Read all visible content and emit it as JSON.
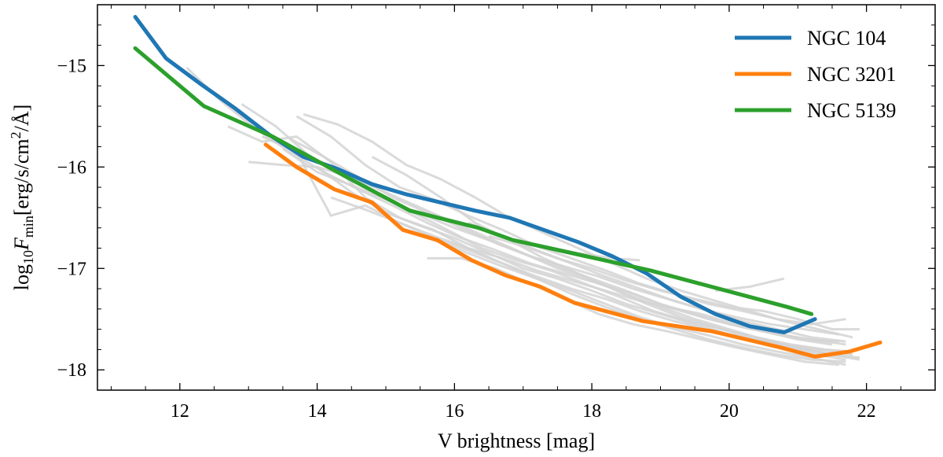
{
  "chart_data": {
    "type": "line",
    "title": "",
    "xlabel": "V brightness [mag]",
    "ylabel": {
      "pre": "log",
      "sub1": "10",
      "F": "F",
      "sub2": "min",
      "post": "[erg/s/cm",
      "sup": "2",
      "end": "/Å]"
    },
    "xlim": [
      10.8,
      23.0
    ],
    "ylim": [
      -18.2,
      -14.4
    ],
    "x_ticks": [
      12,
      14,
      16,
      18,
      20,
      22
    ],
    "x_tick_labels": [
      "12",
      "14",
      "16",
      "18",
      "20",
      "22"
    ],
    "y_ticks": [
      -15,
      -16,
      -17,
      -18
    ],
    "y_tick_labels": [
      "−15",
      "−16",
      "−17",
      "−18"
    ],
    "legend_position": "top-right",
    "series": [
      {
        "name": "NGC 104",
        "color": "#1f77b4",
        "x": [
          11.35,
          11.8,
          12.3,
          12.8,
          13.3,
          13.8,
          14.3,
          14.8,
          15.3,
          15.8,
          16.3,
          16.8,
          17.3,
          17.8,
          18.3,
          18.8,
          19.3,
          19.8,
          20.3,
          20.8,
          21.25
        ],
        "y": [
          -14.52,
          -14.93,
          -15.18,
          -15.42,
          -15.68,
          -15.9,
          -16.02,
          -16.17,
          -16.27,
          -16.35,
          -16.43,
          -16.5,
          -16.62,
          -16.74,
          -16.88,
          -17.05,
          -17.28,
          -17.45,
          -17.57,
          -17.63,
          -17.5
        ]
      },
      {
        "name": "NGC 3201",
        "color": "#ff7f0e",
        "x": [
          13.25,
          13.7,
          14.25,
          14.8,
          15.25,
          15.75,
          16.25,
          16.75,
          17.25,
          17.75,
          18.25,
          18.75,
          19.25,
          19.75,
          20.25,
          20.75,
          21.25,
          21.75,
          22.2
        ],
        "y": [
          -15.78,
          -16.0,
          -16.22,
          -16.35,
          -16.62,
          -16.72,
          -16.92,
          -17.07,
          -17.18,
          -17.34,
          -17.43,
          -17.52,
          -17.57,
          -17.62,
          -17.7,
          -17.78,
          -17.87,
          -17.82,
          -17.73
        ]
      },
      {
        "name": "NGC 5139",
        "color": "#2ca02c",
        "x": [
          11.35,
          12.35,
          13.35,
          14.35,
          15.35,
          16.35,
          16.85,
          17.85,
          18.85,
          19.85,
          20.85,
          21.2
        ],
        "y": [
          -14.83,
          -15.4,
          -15.7,
          -16.07,
          -16.43,
          -16.6,
          -16.72,
          -16.87,
          -17.02,
          -17.2,
          -17.38,
          -17.45
        ]
      }
    ],
    "background_series_color": "#d3d3d3",
    "background_series": [
      {
        "x": [
          12.1,
          12.6,
          13.1,
          13.6,
          14.1,
          14.6,
          15.1,
          15.6,
          16.1,
          16.6,
          17.1,
          17.6,
          18.1,
          18.6,
          19.1,
          19.6,
          20.1,
          20.6,
          21.1,
          21.6
        ],
        "y": [
          -15.02,
          -15.35,
          -15.62,
          -15.85,
          -16.05,
          -16.22,
          -16.38,
          -16.55,
          -16.7,
          -16.82,
          -16.95,
          -17.05,
          -17.15,
          -17.25,
          -17.38,
          -17.45,
          -17.55,
          -17.62,
          -17.7,
          -17.72
        ]
      },
      {
        "x": [
          12.7,
          13.2,
          13.7,
          14.2,
          14.7,
          15.2,
          15.7,
          16.2,
          16.7,
          17.2,
          17.7,
          18.2,
          18.7,
          19.2,
          19.7,
          20.2,
          20.7,
          21.2,
          21.7
        ],
        "y": [
          -15.6,
          -15.75,
          -15.7,
          -15.95,
          -16.3,
          -16.5,
          -16.62,
          -16.8,
          -16.9,
          -17.02,
          -17.12,
          -17.22,
          -17.32,
          -17.4,
          -17.5,
          -17.58,
          -17.65,
          -17.7,
          -17.75
        ]
      },
      {
        "x": [
          12.9,
          13.4,
          13.9,
          14.4,
          14.9,
          15.4,
          15.9,
          16.4,
          16.9,
          17.4,
          17.9,
          18.4,
          18.9,
          19.4,
          19.9,
          20.4,
          20.9,
          21.4,
          21.8
        ],
        "y": [
          -15.38,
          -15.6,
          -15.9,
          -16.1,
          -16.28,
          -16.45,
          -16.62,
          -16.8,
          -16.92,
          -17.02,
          -17.15,
          -17.28,
          -17.42,
          -17.52,
          -17.6,
          -17.68,
          -17.75,
          -17.8,
          -17.82
        ]
      },
      {
        "x": [
          13.0,
          13.5,
          14.0,
          14.5,
          15.0,
          15.5,
          16.0,
          16.5,
          17.0,
          17.5,
          18.0,
          18.5,
          19.0,
          19.5,
          20.0,
          20.5,
          21.0,
          21.5
        ],
        "y": [
          -15.95,
          -15.98,
          -16.0,
          -16.25,
          -16.45,
          -16.58,
          -16.7,
          -16.85,
          -17.0,
          -17.1,
          -17.22,
          -17.35,
          -17.45,
          -17.55,
          -17.65,
          -17.72,
          -17.78,
          -17.85
        ]
      },
      {
        "x": [
          13.2,
          13.7,
          14.2,
          14.7,
          15.2,
          15.7,
          16.2,
          16.7,
          17.2,
          17.7,
          18.2,
          18.7,
          19.2,
          19.7,
          20.2,
          20.7,
          21.2,
          21.7
        ],
        "y": [
          -15.7,
          -15.85,
          -16.48,
          -16.38,
          -16.55,
          -16.7,
          -16.82,
          -16.95,
          -17.08,
          -17.2,
          -17.3,
          -17.42,
          -17.52,
          -17.6,
          -17.68,
          -17.76,
          -17.84,
          -17.9
        ]
      },
      {
        "x": [
          13.5,
          14.0,
          14.5,
          15.0,
          15.5,
          16.0,
          16.5,
          17.0,
          17.5,
          18.0,
          18.5,
          19.0,
          19.5,
          20.0,
          20.5,
          21.0,
          21.5
        ],
        "y": [
          -15.82,
          -16.05,
          -16.18,
          -16.32,
          -16.46,
          -16.6,
          -16.72,
          -16.85,
          -16.98,
          -17.1,
          -17.22,
          -17.35,
          -17.45,
          -17.55,
          -17.62,
          -17.7,
          -17.75
        ]
      },
      {
        "x": [
          13.6,
          14.1,
          14.6,
          15.1,
          15.6,
          16.1,
          16.6,
          17.1,
          17.6,
          18.1,
          18.6,
          19.1,
          19.6,
          20.1,
          20.6,
          21.1,
          21.6
        ],
        "y": [
          -15.72,
          -15.9,
          -16.1,
          -16.3,
          -16.45,
          -16.6,
          -16.75,
          -16.88,
          -16.98,
          -17.08,
          -17.2,
          -17.3,
          -17.4,
          -17.48,
          -17.55,
          -17.6,
          -17.65
        ]
      },
      {
        "x": [
          13.7,
          14.2,
          14.7,
          15.2,
          15.7,
          16.2,
          16.7,
          17.2,
          17.7,
          18.2,
          18.7,
          19.2,
          19.7,
          20.2,
          20.7,
          21.2,
          21.7
        ],
        "y": [
          -15.5,
          -15.7,
          -15.98,
          -16.2,
          -16.32,
          -16.48,
          -16.62,
          -16.78,
          -16.9,
          -17.02,
          -17.15,
          -17.25,
          -17.35,
          -17.42,
          -17.5,
          -17.55,
          -17.5
        ]
      },
      {
        "x": [
          13.8,
          14.3,
          14.8,
          15.3,
          15.8,
          16.3,
          16.8,
          17.3,
          17.8,
          18.3,
          18.8,
          19.3,
          19.8,
          20.3,
          20.8,
          21.3,
          21.8
        ],
        "y": [
          -15.48,
          -15.58,
          -15.75,
          -15.98,
          -16.12,
          -16.3,
          -16.5,
          -16.65,
          -16.8,
          -16.95,
          -17.1,
          -17.22,
          -17.32,
          -17.42,
          -17.52,
          -17.6,
          -17.68
        ]
      },
      {
        "x": [
          14.0,
          14.5,
          15.0,
          15.5,
          16.0,
          16.5,
          17.0,
          17.5,
          18.0,
          18.5,
          19.0,
          19.5,
          20.0,
          20.5,
          21.0,
          21.5,
          21.9
        ],
        "y": [
          -16.0,
          -16.1,
          -16.25,
          -16.4,
          -16.55,
          -16.7,
          -16.85,
          -17.0,
          -17.12,
          -17.25,
          -17.38,
          -17.5,
          -17.6,
          -17.7,
          -17.78,
          -17.85,
          -17.9
        ]
      },
      {
        "x": [
          14.2,
          14.7,
          15.2,
          15.7,
          16.2,
          16.7,
          17.2,
          17.7,
          18.2,
          18.7,
          19.2,
          19.7,
          20.2,
          20.7,
          21.2,
          21.7
        ],
        "y": [
          -16.3,
          -16.42,
          -16.55,
          -16.68,
          -16.8,
          -16.95,
          -17.1,
          -17.25,
          -17.38,
          -17.5,
          -17.6,
          -17.7,
          -17.78,
          -17.85,
          -17.9,
          -17.92
        ]
      },
      {
        "x": [
          14.8,
          15.3,
          15.8,
          16.3,
          16.8,
          17.3,
          17.8,
          18.3,
          18.8,
          19.3,
          19.8,
          20.3,
          20.8,
          21.3,
          21.8
        ],
        "y": [
          -15.9,
          -16.08,
          -16.3,
          -16.55,
          -16.72,
          -16.9,
          -17.05,
          -17.2,
          -17.35,
          -17.48,
          -17.58,
          -17.68,
          -17.75,
          -17.8,
          -17.85
        ]
      },
      {
        "x": [
          15.2,
          15.7,
          16.2,
          16.7,
          17.2,
          17.7,
          18.2,
          18.7,
          19.2,
          19.7,
          20.2,
          20.7,
          21.2,
          21.7
        ],
        "y": [
          -16.6,
          -16.72,
          -16.85,
          -16.98,
          -17.1,
          -17.22,
          -17.35,
          -17.48,
          -17.58,
          -17.66,
          -17.75,
          -17.82,
          -17.88,
          -17.95
        ]
      },
      {
        "x": [
          15.6,
          16.1,
          16.6,
          17.1,
          17.6,
          18.1,
          18.6,
          19.1,
          19.6,
          20.1,
          20.6,
          21.1,
          21.6
        ],
        "y": [
          -16.9,
          -16.9,
          -17.0,
          -17.15,
          -17.3,
          -17.45,
          -17.55,
          -17.62,
          -17.7,
          -17.78,
          -17.85,
          -17.92,
          -17.95
        ]
      },
      {
        "x": [
          16.2,
          16.7,
          17.2,
          17.7,
          18.2,
          18.7,
          19.2,
          19.7,
          20.2,
          20.7,
          21.2,
          21.7
        ],
        "y": [
          -16.55,
          -16.68,
          -16.82,
          -16.95,
          -17.08,
          -17.2,
          -17.32,
          -17.42,
          -17.52,
          -17.6,
          -17.68,
          -17.72
        ]
      },
      {
        "x": [
          16.5,
          17.0,
          17.5,
          18.0,
          18.5,
          19.0,
          19.5,
          20.0,
          20.5,
          21.0,
          21.5,
          21.9
        ],
        "y": [
          -16.68,
          -16.78,
          -16.9,
          -17.0,
          -17.12,
          -17.22,
          -17.3,
          -17.38,
          -17.42,
          -17.5,
          -17.6,
          -17.6
        ]
      },
      {
        "x": [
          17.3,
          17.8,
          18.3,
          18.7
        ],
        "y": [
          -16.78,
          -16.85,
          -16.9,
          -16.92
        ]
      },
      {
        "x": [
          19.8,
          20.3,
          20.8
        ],
        "y": [
          -17.22,
          -17.18,
          -17.1
        ]
      },
      {
        "x": [
          20.5,
          21.0,
          21.5,
          21.9
        ],
        "y": [
          -17.7,
          -17.8,
          -17.85,
          -17.88
        ]
      }
    ]
  }
}
